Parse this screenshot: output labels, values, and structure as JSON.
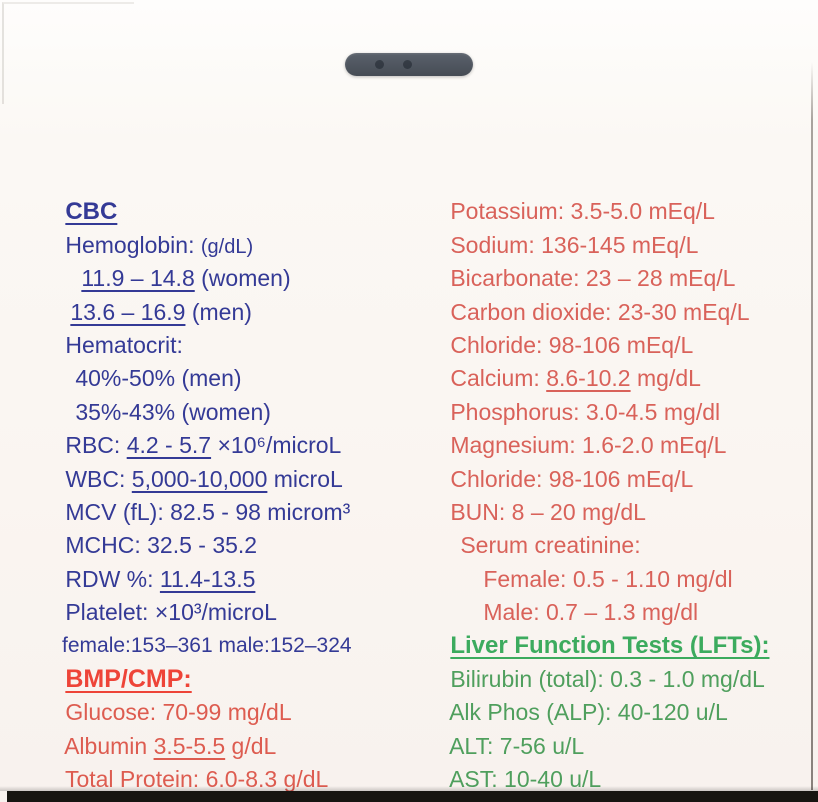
{
  "colors": {
    "blue": "#343a96",
    "red-title": "#ee4438",
    "red-item": "#dd5c50",
    "salmon": "#d9625a",
    "green-title": "#3cab5e",
    "green-item": "#4f9f5d",
    "bottom-bar": "#171511"
  },
  "left": {
    "cbc_title": "CBC",
    "hemoglobin_label": "Hemoglobin: ",
    "hemoglobin_unit": "(g/dL)",
    "hgb_women_range": "11.9 – 14.8",
    "hgb_women_suffix": " (women)",
    "hgb_men_range": "13.6 – 16.9",
    "hgb_men_suffix": " (men)",
    "hematocrit_label": "Hematocrit:",
    "hct_men": "40%-50% (men)",
    "hct_women": "35%-43% (women)",
    "rbc_pre": "RBC: ",
    "rbc_range": "4.2 - 5.7",
    "rbc_post": " ×10⁶/microL",
    "wbc_pre": "WBC: ",
    "wbc_range": "5,000-10,000",
    "wbc_post": " microL",
    "mcv": "MCV (fL): 82.5 - 98 microm³",
    "mchc": "MCHC: 32.5 - 35.2",
    "rdw_pre": "RDW %: ",
    "rdw_range": "11.4-13.5",
    "platelet": "Platelet: ×10³/microL",
    "platelet_ranges": "female:153–361 male:152–324",
    "bmp_title": "BMP/CMP:",
    "glucose": "Glucose: 70-99 mg/dL",
    "albumin_pre": "Albumin ",
    "albumin_range": "3.5-5.5",
    "albumin_post": " g/dL",
    "total_protein": "Total Protein: 6.0-8.3 g/dL"
  },
  "right": {
    "potassium": "Potassium: 3.5-5.0 mEq/L",
    "sodium": "Sodium: 136-145 mEq/L",
    "bicarbonate": "Bicarbonate: 23 – 28 mEq/L",
    "carbon_dioxide": "Carbon dioxide: 23-30 mEq/L",
    "chloride_1": "Chloride: 98-106 mEq/L",
    "calcium_pre": "Calcium: ",
    "calcium_range": "8.6-10.2",
    "calcium_post": " mg/dL",
    "phosphorus": "Phosphorus: 3.0-4.5 mg/dl",
    "magnesium": "Magnesium: 1.6-2.0 mEq/L",
    "chloride_2": "Chloride: 98-106 mEq/L",
    "bun": "BUN: 8 – 20 mg/dL",
    "serum_creatinine_label": "Serum creatinine:",
    "creatinine_female": "Female: 0.5 - 1.10 mg/dl",
    "creatinine_male": "Male: 0.7 – 1.3 mg/dl",
    "lft_title": "Liver Function Tests (LFTs):",
    "bilirubin": "Bilirubin (total): 0.3 - 1.0 mg/dL",
    "alk_phos": "Alk Phos (ALP): 40-120 u/L",
    "alt": "ALT: 7-56 u/L",
    "ast": "AST: 10-40 u/L"
  }
}
